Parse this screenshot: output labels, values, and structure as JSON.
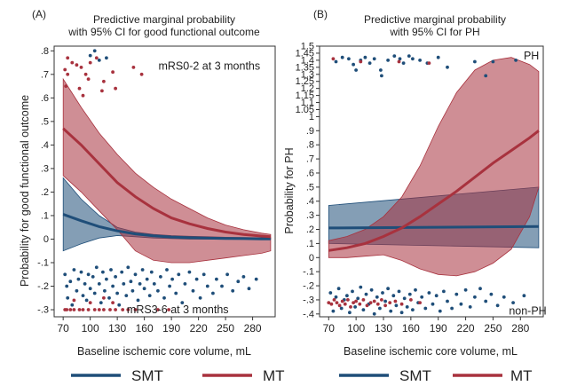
{
  "colors": {
    "smt": "#1f4e79",
    "mt": "#a8323e",
    "smt_fill": "#1f4e79",
    "mt_fill": "#a8323e"
  },
  "legend": {
    "smt_label": "SMT",
    "mt_label": "MT"
  },
  "chart_data": [
    {
      "panel_label": "(A)",
      "type": "line",
      "title": "Predictive marginal probability\nwith 95% CI for good functional outcome",
      "xlabel": "Baseline ischemic core volume, mL",
      "ylabel": "Probability for good functional outcome",
      "xlim": [
        60,
        305
      ],
      "ylim": [
        -0.33,
        0.82
      ],
      "xticks": [
        70,
        100,
        130,
        160,
        190,
        220,
        250,
        280
      ],
      "yticks": [
        -0.3,
        -0.2,
        -0.1,
        0,
        0.1,
        0.2,
        0.3,
        0.4,
        0.5,
        0.6,
        0.7,
        0.8
      ],
      "ytick_labels": [
        "-.3",
        "-.2",
        "-.1",
        "0",
        ".1",
        ".2",
        ".3",
        ".4",
        ".5",
        ".6",
        ".7",
        ".8"
      ],
      "annotations": [
        {
          "text": "mRS0-2 at 3 months",
          "x": 232,
          "y": 0.735
        },
        {
          "text": "mRS3-6 at 3 months",
          "x": 197,
          "y": -0.3
        }
      ],
      "series": [
        {
          "name": "SMT",
          "x": [
            70,
            90,
            110,
            130,
            150,
            170,
            190,
            210,
            230,
            250,
            270,
            290,
            300
          ],
          "y": [
            0.105,
            0.078,
            0.053,
            0.035,
            0.022,
            0.014,
            0.009,
            0.006,
            0.004,
            0.003,
            0.002,
            0.001,
            0.001
          ],
          "upper": [
            0.26,
            0.17,
            0.1,
            0.05,
            0.03,
            0.02,
            0.015,
            0.012,
            0.01,
            0.008,
            0.007,
            0.006,
            0.006
          ],
          "lower": [
            -0.05,
            -0.02,
            0.005,
            0.015,
            0.01,
            0.005,
            0.002,
            0.0,
            0.0,
            0.0,
            0.0,
            0.0,
            0.0
          ]
        },
        {
          "name": "MT",
          "x": [
            70,
            90,
            110,
            130,
            150,
            170,
            190,
            210,
            230,
            250,
            270,
            290,
            300
          ],
          "y": [
            0.47,
            0.4,
            0.32,
            0.24,
            0.18,
            0.13,
            0.09,
            0.065,
            0.045,
            0.03,
            0.02,
            0.013,
            0.01
          ],
          "upper": [
            0.68,
            0.56,
            0.45,
            0.36,
            0.28,
            0.22,
            0.17,
            0.13,
            0.09,
            0.06,
            0.04,
            0.025,
            0.02
          ],
          "lower": [
            0.27,
            0.2,
            0.12,
            0.04,
            -0.05,
            -0.09,
            -0.1,
            -0.1,
            -0.09,
            -0.08,
            -0.07,
            -0.06,
            -0.05
          ]
        }
      ],
      "rug_points": {
        "mt_top": [
          [
            72,
            0.72
          ],
          [
            73,
            0.65
          ],
          [
            75,
            0.7
          ],
          [
            75,
            0.77
          ],
          [
            80,
            0.75
          ],
          [
            85,
            0.74
          ],
          [
            88,
            0.64
          ],
          [
            90,
            0.73
          ],
          [
            92,
            0.61
          ],
          [
            95,
            0.7
          ],
          [
            98,
            0.68
          ],
          [
            100,
            0.75
          ],
          [
            107,
            0.77
          ],
          [
            113,
            0.63
          ],
          [
            115,
            0.67
          ],
          [
            125,
            0.71
          ],
          [
            128,
            0.64
          ],
          [
            148,
            0.73
          ],
          [
            157,
            0.7
          ]
        ],
        "smt_top": [
          [
            100,
            0.78
          ],
          [
            105,
            0.8
          ],
          [
            110,
            0.76
          ],
          [
            118,
            0.77
          ]
        ],
        "mt_bottom": [
          [
            72,
            -0.3
          ],
          [
            74,
            -0.3
          ],
          [
            78,
            -0.3
          ],
          [
            82,
            -0.3
          ],
          [
            88,
            -0.3
          ],
          [
            92,
            -0.3
          ],
          [
            98,
            -0.3
          ],
          [
            105,
            -0.3
          ],
          [
            110,
            -0.3
          ],
          [
            115,
            -0.3
          ],
          [
            122,
            -0.3
          ],
          [
            128,
            -0.3
          ],
          [
            136,
            -0.3
          ],
          [
            142,
            -0.3
          ],
          [
            150,
            -0.3
          ],
          [
            175,
            -0.3
          ],
          [
            187,
            -0.3
          ],
          [
            125,
            -0.27
          ],
          [
            115,
            -0.25
          ],
          [
            100,
            -0.27
          ],
          [
            82,
            -0.26
          ]
        ],
        "smt_bottom": [
          [
            72,
            -0.15
          ],
          [
            74,
            -0.2
          ],
          [
            75,
            -0.25
          ],
          [
            78,
            -0.18
          ],
          [
            80,
            -0.28
          ],
          [
            82,
            -0.13
          ],
          [
            85,
            -0.22
          ],
          [
            87,
            -0.17
          ],
          [
            90,
            -0.14
          ],
          [
            92,
            -0.24
          ],
          [
            94,
            -0.19
          ],
          [
            96,
            -0.26
          ],
          [
            98,
            -0.15
          ],
          [
            100,
            -0.21
          ],
          [
            103,
            -0.16
          ],
          [
            105,
            -0.23
          ],
          [
            107,
            -0.12
          ],
          [
            110,
            -0.19
          ],
          [
            112,
            -0.27
          ],
          [
            114,
            -0.14
          ],
          [
            116,
            -0.22
          ],
          [
            118,
            -0.17
          ],
          [
            121,
            -0.25
          ],
          [
            123,
            -0.13
          ],
          [
            125,
            -0.2
          ],
          [
            128,
            -0.16
          ],
          [
            130,
            -0.23
          ],
          [
            132,
            -0.28
          ],
          [
            135,
            -0.14
          ],
          [
            137,
            -0.19
          ],
          [
            140,
            -0.24
          ],
          [
            142,
            -0.12
          ],
          [
            145,
            -0.18
          ],
          [
            147,
            -0.22
          ],
          [
            150,
            -0.15
          ],
          [
            153,
            -0.26
          ],
          [
            155,
            -0.19
          ],
          [
            158,
            -0.13
          ],
          [
            160,
            -0.21
          ],
          [
            163,
            -0.17
          ],
          [
            166,
            -0.24
          ],
          [
            168,
            -0.14
          ],
          [
            171,
            -0.19
          ],
          [
            175,
            -0.22
          ],
          [
            178,
            -0.16
          ],
          [
            182,
            -0.25
          ],
          [
            185,
            -0.13
          ],
          [
            188,
            -0.2
          ],
          [
            191,
            -0.17
          ],
          [
            195,
            -0.23
          ],
          [
            198,
            -0.15
          ],
          [
            202,
            -0.27
          ],
          [
            205,
            -0.19
          ],
          [
            210,
            -0.14
          ],
          [
            214,
            -0.22
          ],
          [
            218,
            -0.17
          ],
          [
            222,
            -0.25
          ],
          [
            226,
            -0.15
          ],
          [
            230,
            -0.2
          ],
          [
            236,
            -0.23
          ],
          [
            240,
            -0.17
          ],
          [
            246,
            -0.2
          ],
          [
            252,
            -0.15
          ],
          [
            258,
            -0.22
          ],
          [
            264,
            -0.18
          ],
          [
            270,
            -0.16
          ],
          [
            276,
            -0.21
          ],
          [
            284,
            -0.17
          ]
        ]
      }
    },
    {
      "panel_label": "(B)",
      "type": "line",
      "title": "Predictive marginal probability\nwith 95% CI for PH",
      "xlabel": "Baseline ischemic core volume, mL",
      "ylabel": "Probability for PH",
      "xlim": [
        60,
        305
      ],
      "ylim": [
        -0.42,
        1.5
      ],
      "xticks": [
        70,
        100,
        130,
        160,
        190,
        220,
        250,
        280
      ],
      "yticks": [
        -0.4,
        -0.3,
        -0.2,
        -0.1,
        0,
        0.1,
        0.2,
        0.3,
        0.4,
        0.5,
        0.6,
        0.7,
        0.8,
        0.9,
        1.0,
        1.1,
        1.2,
        1.3,
        1.4,
        1.5
      ],
      "ytick_labels": [
        "-.4",
        "-.3",
        "-.2",
        "-.1",
        "0",
        ".1",
        ".2",
        ".3",
        ".4",
        ".5",
        ".6",
        ".7",
        ".8",
        ".9",
        "1",
        "1.1",
        "1.2",
        "1.3",
        "1.4",
        "1.5"
      ],
      "yticks_top": [
        1.05,
        1.15,
        1.25,
        1.35,
        1.45
      ],
      "ytick_labels_top": [
        "1.05",
        "1.15",
        "1.25",
        "1.35",
        "1.45"
      ],
      "annotations": [
        {
          "text": "PH",
          "x": 292,
          "y": 1.43
        },
        {
          "text": "non-PH",
          "x": 288,
          "y": -0.38
        }
      ],
      "series": [
        {
          "name": "SMT",
          "x": [
            70,
            300
          ],
          "y": [
            0.21,
            0.22
          ],
          "upper": [
            0.37,
            0.5
          ],
          "lower": [
            0.1,
            0.07
          ]
        },
        {
          "name": "MT",
          "x": [
            70,
            90,
            110,
            130,
            150,
            170,
            190,
            210,
            230,
            250,
            270,
            290,
            300
          ],
          "y": [
            0.05,
            0.07,
            0.1,
            0.15,
            0.21,
            0.29,
            0.38,
            0.47,
            0.57,
            0.67,
            0.76,
            0.85,
            0.9
          ],
          "upper": [
            0.12,
            0.15,
            0.2,
            0.29,
            0.43,
            0.65,
            0.93,
            1.17,
            1.33,
            1.4,
            1.42,
            1.37,
            1.32
          ],
          "lower": [
            0.0,
            0.0,
            0.01,
            0.02,
            -0.02,
            -0.08,
            -0.12,
            -0.13,
            -0.1,
            -0.04,
            0.06,
            0.29,
            0.5
          ]
        }
      ],
      "rug_points": {
        "top": [
          [
            78,
            1.39
          ],
          [
            85,
            1.42
          ],
          [
            92,
            1.41
          ],
          [
            97,
            1.37
          ],
          [
            100,
            1.33
          ],
          [
            105,
            1.4
          ],
          [
            110,
            1.42
          ],
          [
            115,
            1.38
          ],
          [
            120,
            1.41
          ],
          [
            127,
            1.33
          ],
          [
            128,
            1.29
          ],
          [
            135,
            1.4
          ],
          [
            142,
            1.43
          ],
          [
            148,
            1.41
          ],
          [
            152,
            1.38
          ],
          [
            158,
            1.43
          ],
          [
            162,
            1.41
          ],
          [
            170,
            1.4
          ],
          [
            178,
            1.38
          ],
          [
            190,
            1.42
          ],
          [
            200,
            1.35
          ],
          [
            230,
            1.39
          ],
          [
            242,
            1.29
          ],
          [
            250,
            1.39
          ],
          [
            275,
            1.4
          ]
        ],
        "mt_top": [
          [
            75,
            1.41
          ],
          [
            105,
            1.39
          ],
          [
            147,
            1.39
          ],
          [
            180,
            1.38
          ]
        ],
        "mt_bottom": [
          [
            70,
            -0.32
          ],
          [
            73,
            -0.33
          ],
          [
            76,
            -0.3
          ],
          [
            79,
            -0.32
          ],
          [
            82,
            -0.34
          ],
          [
            85,
            -0.31
          ],
          [
            88,
            -0.33
          ],
          [
            91,
            -0.3
          ],
          [
            94,
            -0.35
          ],
          [
            97,
            -0.32
          ],
          [
            100,
            -0.31
          ],
          [
            104,
            -0.33
          ],
          [
            108,
            -0.3
          ],
          [
            112,
            -0.34
          ],
          [
            116,
            -0.32
          ],
          [
            120,
            -0.31
          ],
          [
            124,
            -0.33
          ],
          [
            128,
            -0.3
          ],
          [
            132,
            -0.34
          ],
          [
            137,
            -0.32
          ],
          [
            143,
            -0.31
          ],
          [
            150,
            -0.33
          ],
          [
            160,
            -0.3
          ],
          [
            170,
            -0.32
          ]
        ],
        "smt_bottom": [
          [
            72,
            -0.25
          ],
          [
            75,
            -0.38
          ],
          [
            78,
            -0.28
          ],
          [
            81,
            -0.22
          ],
          [
            84,
            -0.36
          ],
          [
            87,
            -0.3
          ],
          [
            90,
            -0.27
          ],
          [
            93,
            -0.39
          ],
          [
            96,
            -0.24
          ],
          [
            99,
            -0.35
          ],
          [
            102,
            -0.29
          ],
          [
            105,
            -0.21
          ],
          [
            108,
            -0.37
          ],
          [
            111,
            -0.26
          ],
          [
            114,
            -0.33
          ],
          [
            117,
            -0.23
          ],
          [
            120,
            -0.4
          ],
          [
            123,
            -0.28
          ],
          [
            126,
            -0.36
          ],
          [
            129,
            -0.25
          ],
          [
            132,
            -0.31
          ],
          [
            135,
            -0.22
          ],
          [
            138,
            -0.38
          ],
          [
            141,
            -0.27
          ],
          [
            144,
            -0.34
          ],
          [
            147,
            -0.24
          ],
          [
            150,
            -0.39
          ],
          [
            153,
            -0.29
          ],
          [
            156,
            -0.35
          ],
          [
            159,
            -0.26
          ],
          [
            162,
            -0.37
          ],
          [
            165,
            -0.23
          ],
          [
            168,
            -0.32
          ],
          [
            172,
            -0.28
          ],
          [
            176,
            -0.36
          ],
          [
            180,
            -0.25
          ],
          [
            184,
            -0.33
          ],
          [
            188,
            -0.27
          ],
          [
            192,
            -0.38
          ],
          [
            196,
            -0.24
          ],
          [
            200,
            -0.31
          ],
          [
            205,
            -0.36
          ],
          [
            210,
            -0.26
          ],
          [
            215,
            -0.33
          ],
          [
            220,
            -0.23
          ],
          [
            225,
            -0.35
          ],
          [
            230,
            -0.28
          ],
          [
            236,
            -0.22
          ],
          [
            242,
            -0.31
          ],
          [
            248,
            -0.26
          ],
          [
            255,
            -0.34
          ],
          [
            262,
            -0.28
          ],
          [
            272,
            -0.32
          ],
          [
            284,
            -0.27
          ]
        ]
      }
    }
  ]
}
